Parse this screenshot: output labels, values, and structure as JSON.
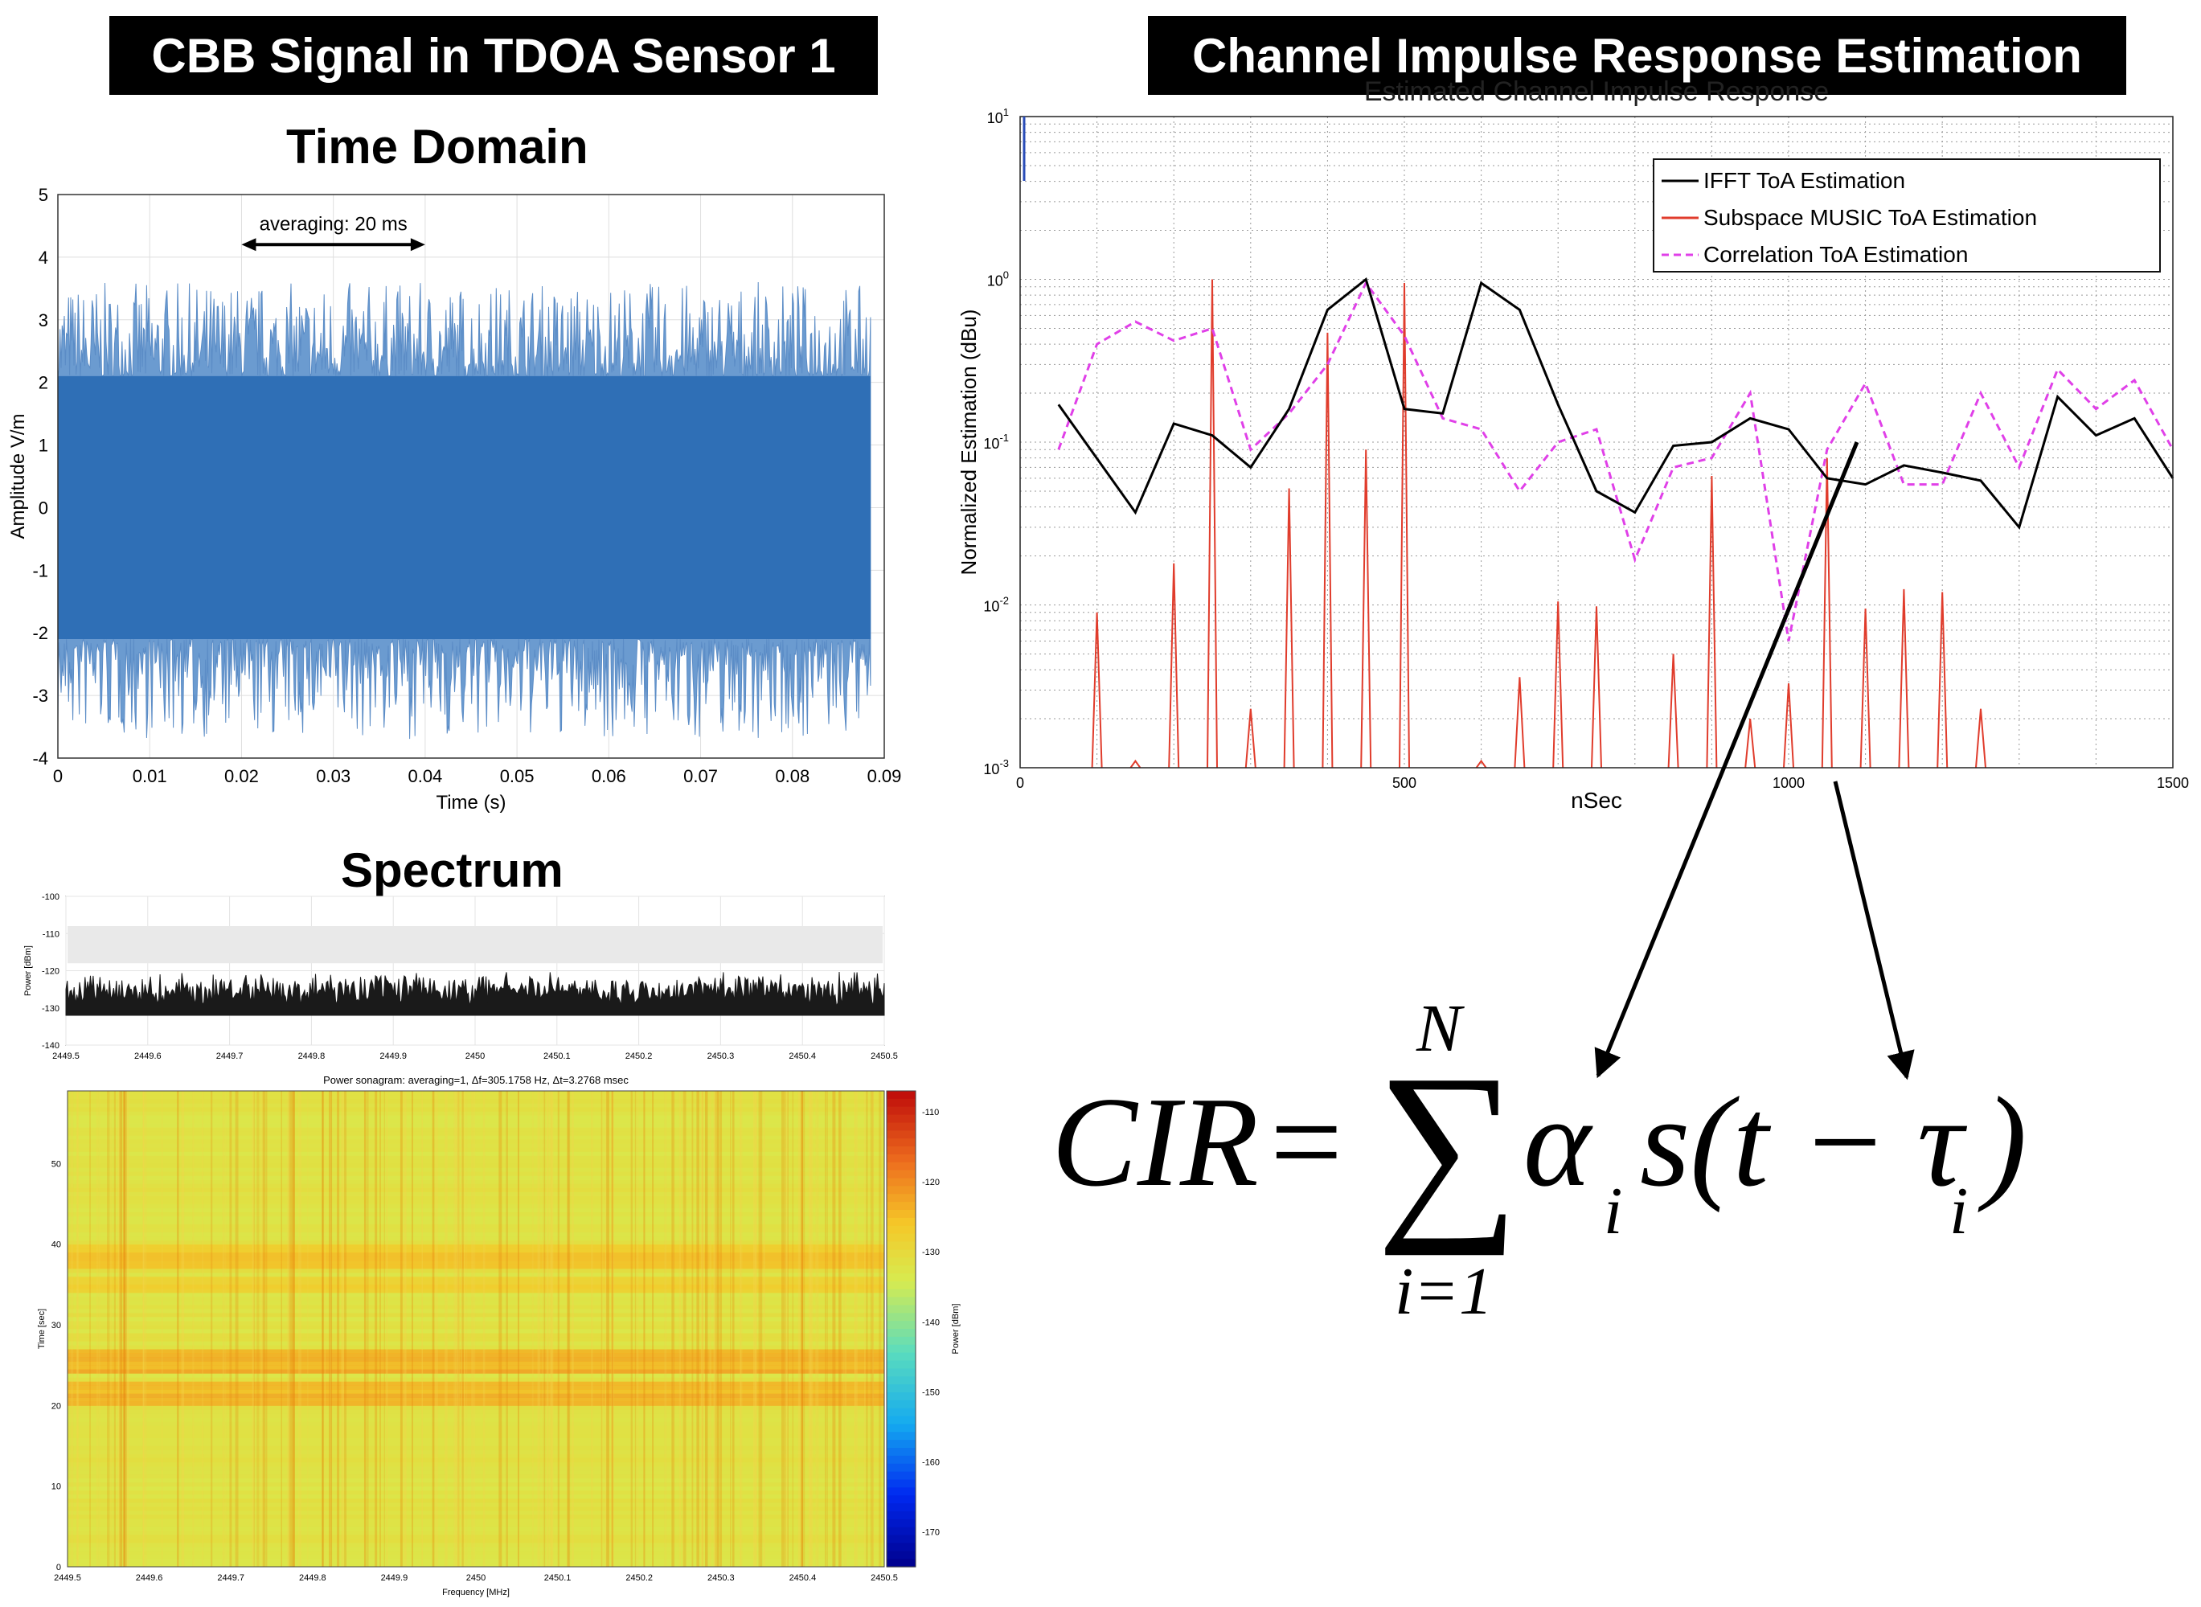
{
  "banners": {
    "left": "CBB Signal in TDOA Sensor 1",
    "right": "Channel Impulse Response Estimation"
  },
  "headings": {
    "time_domain": "Time Domain",
    "spectrum": "Spectrum"
  },
  "colors": {
    "signal_blue": "#2f6fb6",
    "ifft": "#000000",
    "music": "#e03c2c",
    "correlation": "#e040e8"
  },
  "formula": {
    "lhs": "CIR",
    "equals": "=",
    "sum_upper": "N",
    "sum_lower": "i=1",
    "alpha": "α",
    "sub_i": "i",
    "s_open": "s(t − ",
    "tau": "τ",
    "close": ")"
  },
  "chart_data": [
    {
      "id": "time-domain",
      "type": "area",
      "title": "",
      "xlabel": "Time (s)",
      "ylabel": "Amplitude V/m",
      "xlim": [
        0,
        0.09
      ],
      "ylim": [
        -4,
        5
      ],
      "xticks": [
        "0",
        "0.01",
        "0.02",
        "0.03",
        "0.04",
        "0.05",
        "0.06",
        "0.07",
        "0.08",
        "0.09"
      ],
      "yticks": [
        "-4",
        "-3",
        "-2",
        "-1",
        "0",
        "1",
        "2",
        "3",
        "4",
        "5"
      ],
      "x_extent": [
        0,
        0.0885
      ],
      "dense_band": [
        -2.1,
        2.1
      ],
      "peak_range": [
        -3.7,
        3.6
      ],
      "annotation": {
        "text": "averaging: 20 ms",
        "x_start": 0.02,
        "x_end": 0.04,
        "y": 4.2
      },
      "grid": true
    },
    {
      "id": "cir-estimation",
      "type": "line",
      "title": "Estimated Channel Impulse Response",
      "xlabel": "nSec",
      "ylabel": "Normalized Estimation (dBu)",
      "yscale": "log",
      "xlim": [
        0,
        1500
      ],
      "ylim": [
        0.001,
        10
      ],
      "xticks": [
        "0",
        "500",
        "1000",
        "1500"
      ],
      "yticks_exp": [
        "-3",
        "-2",
        "-1",
        "0",
        "1"
      ],
      "ytick_base": "10",
      "legend_position": "top-right",
      "grid": true,
      "series": [
        {
          "name": "IFFT ToA Estimation",
          "style": "solid-black",
          "x": [
            50,
            150,
            200,
            250,
            300,
            350,
            400,
            450,
            500,
            550,
            600,
            650,
            700,
            750,
            800,
            850,
            900,
            950,
            1000,
            1050,
            1100,
            1150,
            1200,
            1250,
            1300,
            1350,
            1400,
            1450,
            1500
          ],
          "y": [
            0.17,
            0.037,
            0.13,
            0.11,
            0.07,
            0.16,
            0.65,
            1.0,
            0.16,
            0.15,
            0.95,
            0.65,
            0.17,
            0.05,
            0.037,
            0.095,
            0.1,
            0.14,
            0.12,
            0.06,
            0.055,
            0.072,
            0.065,
            0.058,
            0.03,
            0.19,
            0.11,
            0.14,
            0.06
          ]
        },
        {
          "name": "Subspace MUSIC ToA Estimation",
          "style": "red-stem",
          "x": [
            100,
            150,
            200,
            250,
            300,
            350,
            400,
            450,
            500,
            600,
            650,
            700,
            750,
            850,
            900,
            950,
            1000,
            1050,
            1100,
            1150,
            1200,
            1250
          ],
          "y": [
            0.009,
            0.0011,
            0.018,
            1.0,
            0.0023,
            0.052,
            0.47,
            0.09,
            0.95,
            0.0011,
            0.0036,
            0.0105,
            0.0098,
            0.005,
            0.062,
            0.002,
            0.0033,
            0.08,
            0.0095,
            0.0125,
            0.012,
            0.0023
          ]
        },
        {
          "name": "Correlation ToA Estimation",
          "style": "dashed-magenta",
          "x": [
            50,
            100,
            150,
            200,
            250,
            300,
            350,
            400,
            450,
            500,
            550,
            600,
            650,
            700,
            750,
            800,
            850,
            900,
            950,
            1000,
            1050,
            1100,
            1150,
            1200,
            1250,
            1300,
            1350,
            1400,
            1450,
            1500
          ],
          "y": [
            0.09,
            0.4,
            0.55,
            0.42,
            0.5,
            0.09,
            0.15,
            0.3,
            0.95,
            0.45,
            0.14,
            0.12,
            0.05,
            0.1,
            0.12,
            0.019,
            0.07,
            0.08,
            0.2,
            0.006,
            0.09,
            0.23,
            0.055,
            0.055,
            0.2,
            0.07,
            0.28,
            0.16,
            0.24,
            0.09
          ]
        }
      ]
    },
    {
      "id": "power-spectrum",
      "type": "line",
      "xlabel": "",
      "ylabel": "Power [dBm]",
      "xlim": [
        2449.5,
        2450.5
      ],
      "ylim": [
        -140,
        -100
      ],
      "xticks": [
        "2449.5",
        "2449.6",
        "2449.7",
        "2449.8",
        "2449.9",
        "2450",
        "2450.1",
        "2450.2",
        "2450.3",
        "2450.4",
        "2450.5"
      ],
      "yticks": [
        "-100",
        "-110",
        "-120",
        "-130",
        "-140"
      ],
      "max_hold_range": [
        -118,
        -108
      ],
      "trace_floor": -132,
      "trace_peak_range": [
        -124,
        -120
      ]
    },
    {
      "id": "sonagram",
      "type": "heatmap",
      "title": "Power sonagram: averaging=1, Δf=305.1758 Hz, Δt=3.2768 msec",
      "xlabel": "Frequency [MHz]",
      "ylabel": "Time [sec]",
      "xlim": [
        2449.5,
        2450.5
      ],
      "ylim": [
        0,
        59
      ],
      "xticks": [
        "2449.5",
        "2449.6",
        "2449.7",
        "2449.8",
        "2449.9",
        "2450",
        "2450.1",
        "2450.2",
        "2450.3",
        "2450.4",
        "2450.5"
      ],
      "yticks": [
        "0",
        "10",
        "20",
        "30",
        "40",
        "50"
      ],
      "colorbar_label": "Power [dBm]",
      "colorbar_ticks": [
        "-110",
        "-120",
        "-130",
        "-140",
        "-150",
        "-160",
        "-170"
      ],
      "clim": [
        -175,
        -107
      ],
      "background_level": -132,
      "hot_bands": [
        {
          "t_start": 20,
          "t_end": 23,
          "level": -124
        },
        {
          "t_start": 24,
          "t_end": 27,
          "level": -123
        },
        {
          "t_start": 34,
          "t_end": 36,
          "level": -127
        },
        {
          "t_start": 37,
          "t_end": 40,
          "level": -126
        }
      ]
    }
  ]
}
